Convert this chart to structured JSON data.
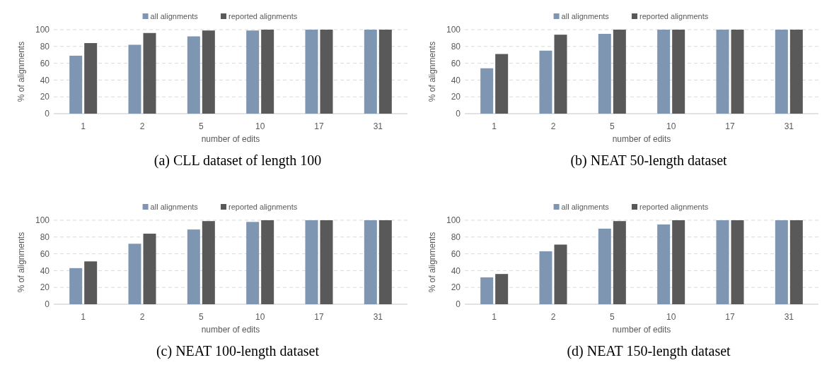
{
  "chart_data": [
    {
      "type": "bar",
      "title": "(a) CLL dataset of length 100",
      "xlabel": "number of edits",
      "ylabel": "% of alignments",
      "categories": [
        "1",
        "2",
        "5",
        "10",
        "17",
        "31"
      ],
      "series": [
        {
          "name": "all alignments",
          "color": "#7f96b2",
          "values": [
            69,
            82,
            92,
            99,
            100,
            100
          ]
        },
        {
          "name": "reported alignments",
          "color": "#595959",
          "values": [
            84,
            96,
            99,
            100,
            100,
            100
          ]
        }
      ],
      "ylim": [
        0,
        100
      ],
      "yticks": [
        0,
        20,
        40,
        60,
        80,
        100
      ],
      "grid": "y",
      "legend": "top"
    },
    {
      "type": "bar",
      "title": "(b) NEAT 50-length dataset",
      "xlabel": "number of edits",
      "ylabel": "% of alignments",
      "categories": [
        "1",
        "2",
        "5",
        "10",
        "17",
        "31"
      ],
      "series": [
        {
          "name": "all alignments",
          "color": "#7f96b2",
          "values": [
            54,
            75,
            95,
            100,
            100,
            100
          ]
        },
        {
          "name": "reported alignments",
          "color": "#595959",
          "values": [
            71,
            94,
            100,
            100,
            100,
            100
          ]
        }
      ],
      "ylim": [
        0,
        100
      ],
      "yticks": [
        0,
        20,
        40,
        60,
        80,
        100
      ],
      "grid": "y",
      "legend": "top"
    },
    {
      "type": "bar",
      "title": "(c) NEAT 100-length dataset",
      "xlabel": "number of edits",
      "ylabel": "% of alignments",
      "categories": [
        "1",
        "2",
        "5",
        "10",
        "17",
        "31"
      ],
      "series": [
        {
          "name": "all alignments",
          "color": "#7f96b2",
          "values": [
            43,
            72,
            89,
            98,
            100,
            100
          ]
        },
        {
          "name": "reported alignments",
          "color": "#595959",
          "values": [
            51,
            84,
            99,
            100,
            100,
            100
          ]
        }
      ],
      "ylim": [
        0,
        100
      ],
      "yticks": [
        0,
        20,
        40,
        60,
        80,
        100
      ],
      "grid": "y",
      "legend": "top"
    },
    {
      "type": "bar",
      "title": "(d) NEAT 150-length dataset",
      "xlabel": "number of edits",
      "ylabel": "% of alignments",
      "categories": [
        "1",
        "2",
        "5",
        "10",
        "17",
        "31"
      ],
      "series": [
        {
          "name": "all alignments",
          "color": "#7f96b2",
          "values": [
            32,
            63,
            90,
            95,
            100,
            100
          ]
        },
        {
          "name": "reported alignments",
          "color": "#595959",
          "values": [
            36,
            71,
            99,
            100,
            100,
            100
          ]
        }
      ],
      "ylim": [
        0,
        100
      ],
      "yticks": [
        0,
        20,
        40,
        60,
        80,
        100
      ],
      "grid": "y",
      "legend": "top"
    }
  ]
}
